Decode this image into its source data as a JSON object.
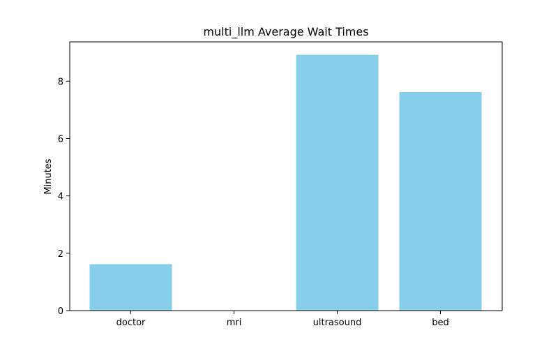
{
  "chart_data": {
    "type": "bar",
    "title": "multi_llm Average Wait Times",
    "xlabel": "",
    "ylabel": "Minutes",
    "categories": [
      "doctor",
      "mri",
      "ultrasound",
      "bed"
    ],
    "values": [
      1.62,
      0,
      8.92,
      7.62
    ],
    "ylim": [
      0,
      9.37
    ],
    "yticks": [
      0,
      2,
      4,
      6,
      8
    ],
    "bar_color": "#87ceeb",
    "grid": false,
    "legend": "none"
  }
}
